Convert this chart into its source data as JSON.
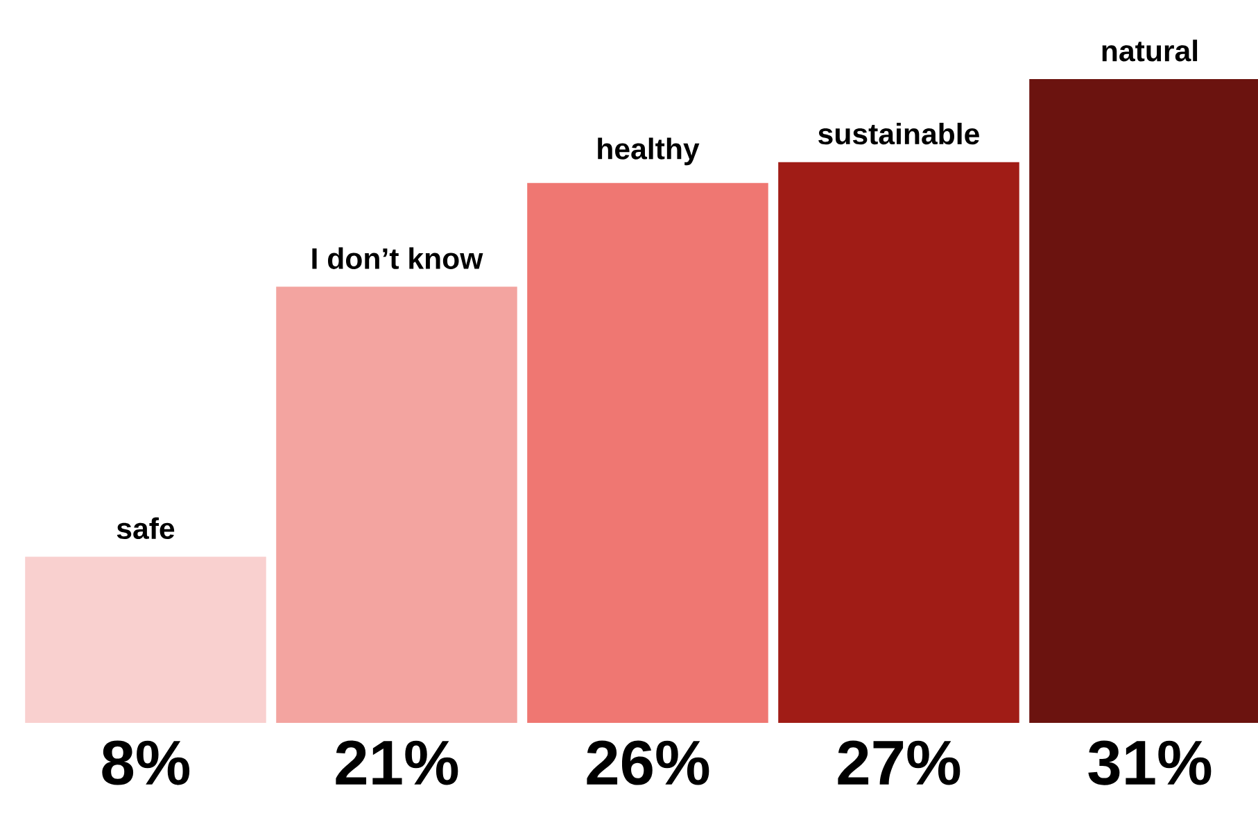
{
  "chart_data": {
    "type": "bar",
    "categories": [
      "safe",
      "I don’t know",
      "healthy",
      "sustainable",
      "natural"
    ],
    "values": [
      8,
      21,
      26,
      27,
      31
    ],
    "colors": [
      "#f9d0cf",
      "#f3a4a0",
      "#ef7772",
      "#a01c16",
      "#6b130f"
    ],
    "value_labels": [
      "8%",
      "21%",
      "26%",
      "27%",
      "31%"
    ]
  }
}
